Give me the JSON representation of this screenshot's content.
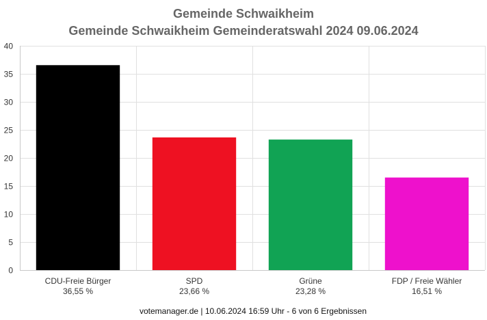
{
  "chart_data": {
    "type": "bar",
    "title": "Gemeinde Schwaikheim",
    "subtitle": "Gemeinde Schwaikheim Gemeinderatswahl 2024 09.06.2024",
    "xlabel": "",
    "ylabel": "",
    "ylim": [
      0,
      40
    ],
    "yticks": [
      0,
      5,
      10,
      15,
      20,
      25,
      30,
      35,
      40
    ],
    "grid": true,
    "legend": "none",
    "categories": [
      "CDU-Freie Bürger",
      "SPD",
      "Grüne",
      "FDP / Freie Wähler"
    ],
    "values": [
      36.55,
      23.66,
      23.28,
      16.51
    ],
    "value_labels": [
      "36,55 %",
      "23,66 %",
      "23,28 %",
      "16,51 %"
    ],
    "colors": [
      "#000000",
      "#ee1122",
      "#11a354",
      "#ee11cc"
    ]
  },
  "footer": "votemanager.de | 10.06.2024 16:59 Uhr - 6 von 6 Ergebnissen"
}
